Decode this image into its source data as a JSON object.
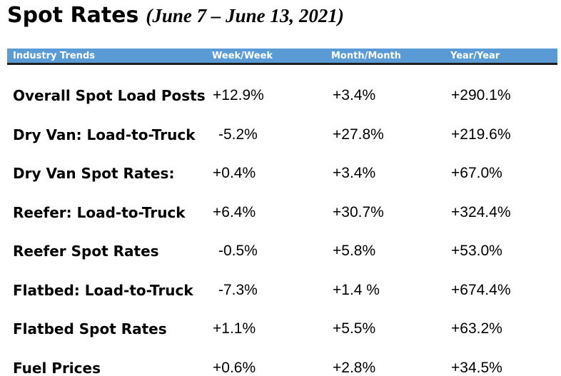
{
  "title": {
    "main": "Spot Rates",
    "date_range": "(June 7 – June 13, 2021)"
  },
  "table": {
    "headers": [
      "Industry Trends",
      "Week/Week",
      "Month/Month",
      "Year/Year"
    ],
    "header_color": "#5b9bd5",
    "rows": [
      {
        "label": "Overall Spot Load Posts",
        "week": "+12.9%",
        "month": "+3.4%",
        "year": "+290.1%"
      },
      {
        "label": "Dry Van: Load-to-Truck",
        "week": " -5.2%",
        "month": "+27.8%",
        "year": "+219.6%"
      },
      {
        "label": "Dry Van Spot Rates:",
        "week": "+0.4%",
        "month": "+3.4%",
        "year": "+67.0%"
      },
      {
        "label": "Reefer: Load-to-Truck",
        "week": "+6.4%",
        "month": "+30.7%",
        "year": "+324.4%"
      },
      {
        "label": "Reefer Spot Rates",
        "week": " -0.5%",
        "month": "+5.8%",
        "year": "+53.0%"
      },
      {
        "label": "Flatbed: Load-to-Truck",
        "week": " -7.3%",
        "month": "+1.4 %",
        "year": "+674.4%"
      },
      {
        "label": "Flatbed Spot Rates",
        "week": "+1.1%",
        "month": "+5.5%",
        "year": "+63.2%"
      },
      {
        "label": "Fuel Prices",
        "week": "+0.6%",
        "month": "+2.8%",
        "year": "+34.5%"
      }
    ]
  }
}
